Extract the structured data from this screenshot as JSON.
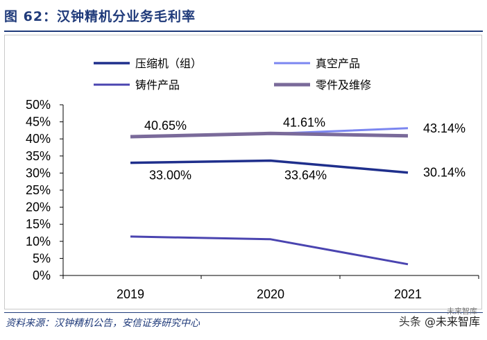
{
  "title": "图 62：汉钟精机分业务毛利率",
  "source": "资料来源：汉钟精机公告，安信证券研究中心",
  "watermark": {
    "prefix": "头条",
    "name": "@未来智库",
    "small": "未来智库"
  },
  "chart_data": {
    "type": "line",
    "title": "汉钟精机分业务毛利率",
    "xlabel": "",
    "ylabel": "",
    "categories": [
      "2019",
      "2020",
      "2021"
    ],
    "ylim": [
      0,
      50
    ],
    "yticks": [
      "0%",
      "5%",
      "10%",
      "15%",
      "20%",
      "25%",
      "30%",
      "35%",
      "40%",
      "45%",
      "50%"
    ],
    "legend_position": "top",
    "series": [
      {
        "name": "压缩机（组）",
        "values": [
          33.0,
          33.64,
          30.14
        ],
        "color": "#1f2f8c",
        "labels": [
          "33.00%",
          "33.64%",
          "30.14%"
        ]
      },
      {
        "name": "真空产品",
        "values": [
          40.8,
          41.5,
          43.14
        ],
        "color": "#7b86f0",
        "labels": [
          "",
          "",
          "43.14%"
        ]
      },
      {
        "name": "铸件产品",
        "values": [
          11.4,
          10.6,
          3.3
        ],
        "color": "#4a44b0",
        "labels": [
          "",
          "",
          ""
        ]
      },
      {
        "name": "零件及维修",
        "values": [
          40.65,
          41.61,
          40.9
        ],
        "color": "#7a6a9a",
        "labels": [
          "40.65%",
          "41.61%",
          ""
        ]
      }
    ]
  }
}
